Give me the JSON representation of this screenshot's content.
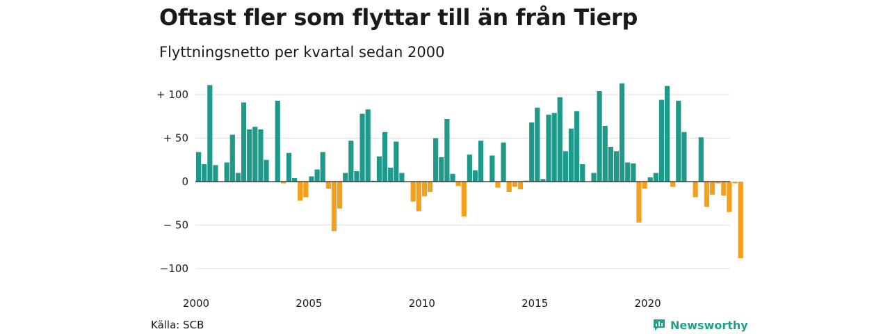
{
  "title": "Oftast fler som flyttar till än från Tierp",
  "subtitle": "Flyttningsnetto per kvartal sedan 2000",
  "source": "Källa: SCB",
  "brand": "Newsworthy",
  "colors": {
    "positive": "#1f9a8a",
    "negative": "#f5a01a",
    "grid": "#dddddd",
    "zero": "#222222",
    "brand": "#20a08a"
  },
  "chart_data": {
    "type": "bar",
    "title": "Oftast fler som flyttar till än från Tierp",
    "subtitle": "Flyttningsnetto per kvartal sedan 2000",
    "xlabel": "",
    "ylabel": "",
    "ylim": [
      -100,
      100
    ],
    "grid": true,
    "yticks": [
      {
        "value": 100,
        "label": "+ 100"
      },
      {
        "value": 50,
        "label": "+  50"
      },
      {
        "value": 0,
        "label": "0"
      },
      {
        "value": -50,
        "label": "− 50"
      },
      {
        "value": -100,
        "label": "−100"
      }
    ],
    "xticks": [
      {
        "value": 2000,
        "label": "2000"
      },
      {
        "value": 2005,
        "label": "2005"
      },
      {
        "value": 2010,
        "label": "2010"
      },
      {
        "value": 2015,
        "label": "2015"
      },
      {
        "value": 2020,
        "label": "2020"
      }
    ],
    "start_year": 2000,
    "values": [
      34,
      20,
      111,
      19,
      0,
      22,
      54,
      10,
      91,
      60,
      63,
      60,
      25,
      0,
      93,
      -2,
      33,
      4,
      -22,
      -18,
      6,
      14,
      34,
      -8,
      -57,
      -31,
      10,
      47,
      12,
      78,
      83,
      1,
      29,
      57,
      16,
      46,
      10,
      0,
      -23,
      -34,
      -17,
      -12,
      50,
      28,
      72,
      9,
      -5,
      -40,
      31,
      13,
      47,
      0,
      30,
      -7,
      45,
      -12,
      -6,
      -9,
      1,
      68,
      85,
      3,
      77,
      79,
      97,
      35,
      61,
      81,
      20,
      0,
      10,
      104,
      64,
      40,
      35,
      113,
      22,
      21,
      -47,
      -8,
      5,
      10,
      94,
      110,
      -6,
      93,
      57,
      0,
      -18,
      51,
      -29,
      -15,
      -2,
      -16,
      -35,
      -2,
      -88
    ]
  }
}
